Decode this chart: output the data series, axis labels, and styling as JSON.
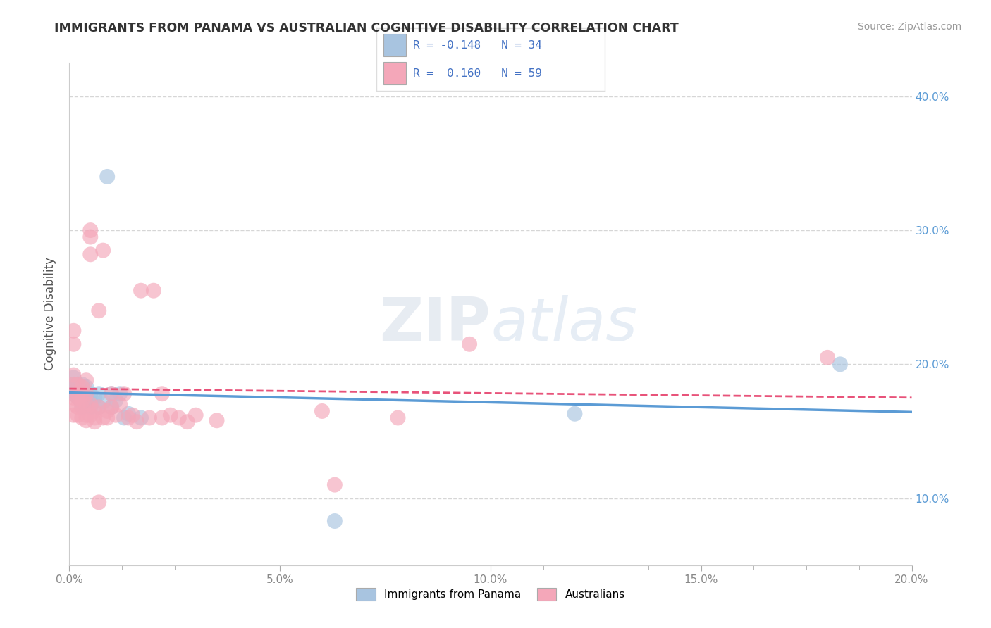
{
  "title": "IMMIGRANTS FROM PANAMA VS AUSTRALIAN COGNITIVE DISABILITY CORRELATION CHART",
  "source": "Source: ZipAtlas.com",
  "ylabel": "Cognitive Disability",
  "xlim": [
    0.0,
    0.2
  ],
  "ylim": [
    0.05,
    0.425
  ],
  "grid_color": "#cccccc",
  "background_color": "#ffffff",
  "watermark": "ZIPatlas",
  "blue_color": "#a8c4e0",
  "pink_color": "#f4a7b9",
  "blue_line_color": "#5b9bd5",
  "pink_line_color": "#e8537a",
  "blue_scatter": [
    [
      0.001,
      0.19
    ],
    [
      0.001,
      0.185
    ],
    [
      0.001,
      0.18
    ],
    [
      0.001,
      0.178
    ],
    [
      0.002,
      0.185
    ],
    [
      0.002,
      0.182
    ],
    [
      0.002,
      0.178
    ],
    [
      0.002,
      0.175
    ],
    [
      0.003,
      0.185
    ],
    [
      0.003,
      0.18
    ],
    [
      0.003,
      0.178
    ],
    [
      0.003,
      0.172
    ],
    [
      0.003,
      0.168
    ],
    [
      0.004,
      0.183
    ],
    [
      0.004,
      0.175
    ],
    [
      0.004,
      0.17
    ],
    [
      0.005,
      0.178
    ],
    [
      0.005,
      0.172
    ],
    [
      0.005,
      0.168
    ],
    [
      0.006,
      0.175
    ],
    [
      0.007,
      0.178
    ],
    [
      0.007,
      0.168
    ],
    [
      0.008,
      0.172
    ],
    [
      0.009,
      0.34
    ],
    [
      0.01,
      0.178
    ],
    [
      0.01,
      0.168
    ],
    [
      0.011,
      0.173
    ],
    [
      0.012,
      0.178
    ],
    [
      0.013,
      0.16
    ],
    [
      0.014,
      0.163
    ],
    [
      0.017,
      0.16
    ],
    [
      0.063,
      0.083
    ],
    [
      0.12,
      0.163
    ],
    [
      0.183,
      0.2
    ]
  ],
  "pink_scatter": [
    [
      0.001,
      0.175
    ],
    [
      0.001,
      0.185
    ],
    [
      0.001,
      0.192
    ],
    [
      0.001,
      0.215
    ],
    [
      0.001,
      0.225
    ],
    [
      0.001,
      0.17
    ],
    [
      0.001,
      0.162
    ],
    [
      0.002,
      0.175
    ],
    [
      0.002,
      0.185
    ],
    [
      0.002,
      0.178
    ],
    [
      0.002,
      0.168
    ],
    [
      0.002,
      0.162
    ],
    [
      0.003,
      0.16
    ],
    [
      0.003,
      0.178
    ],
    [
      0.003,
      0.183
    ],
    [
      0.003,
      0.173
    ],
    [
      0.003,
      0.168
    ],
    [
      0.004,
      0.162
    ],
    [
      0.004,
      0.17
    ],
    [
      0.004,
      0.178
    ],
    [
      0.004,
      0.188
    ],
    [
      0.004,
      0.158
    ],
    [
      0.005,
      0.3
    ],
    [
      0.005,
      0.295
    ],
    [
      0.005,
      0.282
    ],
    [
      0.005,
      0.162
    ],
    [
      0.005,
      0.17
    ],
    [
      0.006,
      0.157
    ],
    [
      0.006,
      0.165
    ],
    [
      0.006,
      0.16
    ],
    [
      0.007,
      0.097
    ],
    [
      0.007,
      0.168
    ],
    [
      0.007,
      0.24
    ],
    [
      0.008,
      0.285
    ],
    [
      0.008,
      0.16
    ],
    [
      0.009,
      0.16
    ],
    [
      0.009,
      0.165
    ],
    [
      0.01,
      0.178
    ],
    [
      0.01,
      0.168
    ],
    [
      0.011,
      0.162
    ],
    [
      0.012,
      0.17
    ],
    [
      0.013,
      0.178
    ],
    [
      0.014,
      0.16
    ],
    [
      0.015,
      0.162
    ],
    [
      0.016,
      0.157
    ],
    [
      0.017,
      0.255
    ],
    [
      0.019,
      0.16
    ],
    [
      0.02,
      0.255
    ],
    [
      0.022,
      0.178
    ],
    [
      0.022,
      0.16
    ],
    [
      0.024,
      0.162
    ],
    [
      0.026,
      0.16
    ],
    [
      0.028,
      0.157
    ],
    [
      0.03,
      0.162
    ],
    [
      0.035,
      0.158
    ],
    [
      0.06,
      0.165
    ],
    [
      0.063,
      0.11
    ],
    [
      0.078,
      0.16
    ],
    [
      0.095,
      0.215
    ],
    [
      0.18,
      0.205
    ]
  ]
}
